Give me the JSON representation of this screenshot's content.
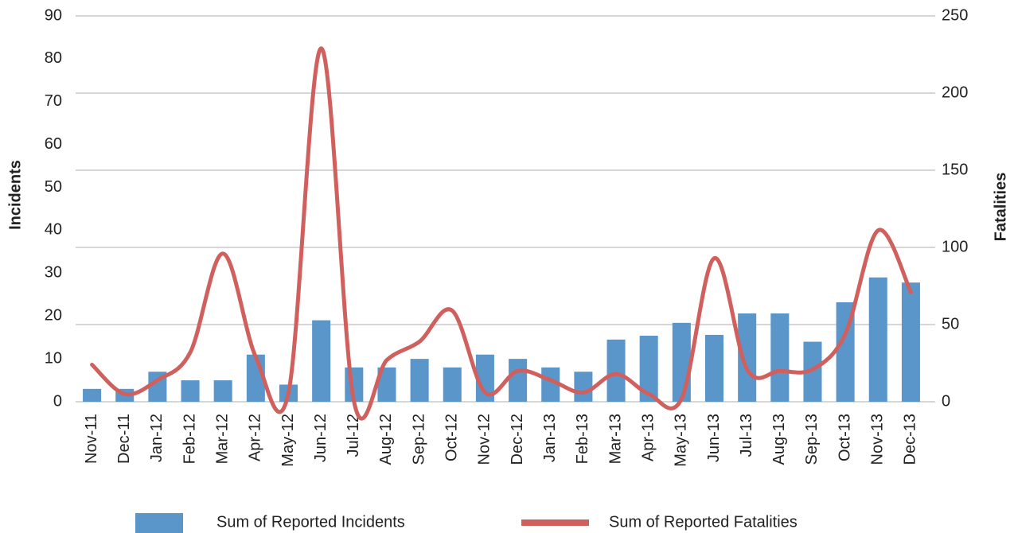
{
  "chart_data": {
    "type": "bar_line",
    "y_label": "Incidents",
    "y2_label": "Fatalities",
    "categories": [
      "Nov-11",
      "Dec-11",
      "Jan-12",
      "Feb-12",
      "Mar-12",
      "Apr-12",
      "May-12",
      "Jun-12",
      "Jul-12",
      "Aug-12",
      "Sep-12",
      "Oct-12",
      "Nov-12",
      "Dec-12",
      "Jan-13",
      "Feb-13",
      "Mar-13",
      "Apr-13",
      "May-13",
      "Jun-13",
      "Jul-13",
      "Aug-13",
      "Sep-13",
      "Oct-13",
      "Nov-13",
      "Dec-13"
    ],
    "series": [
      {
        "name": "Sum of Reported Incidents",
        "type": "bar",
        "color": "#5b96cb",
        "axis": "y",
        "values": [
          3,
          3,
          7,
          5,
          5,
          11,
          4,
          19,
          8,
          8,
          10,
          8,
          11,
          10,
          8,
          7,
          14.5,
          15.4,
          18.4,
          15.6,
          20.6,
          20.6,
          14,
          23.2,
          29,
          27.8
        ]
      },
      {
        "name": "Sum of Reported Fatalities",
        "type": "line",
        "color": "#d0605e",
        "axis": "y2",
        "values": [
          24,
          5,
          14,
          32,
          96,
          29,
          6,
          229,
          0,
          27,
          39,
          59,
          6,
          20,
          14,
          6,
          18,
          5,
          2,
          93,
          21,
          20,
          21,
          44,
          111,
          71
        ]
      }
    ],
    "ylim": [
      0,
      90
    ],
    "yticks": [
      0,
      10,
      20,
      30,
      40,
      50,
      60,
      70,
      80,
      90
    ],
    "y2lim": [
      0,
      250
    ],
    "y2ticks": [
      0,
      50,
      100,
      150,
      200,
      250
    ],
    "grid": true,
    "legend": "bottom"
  }
}
